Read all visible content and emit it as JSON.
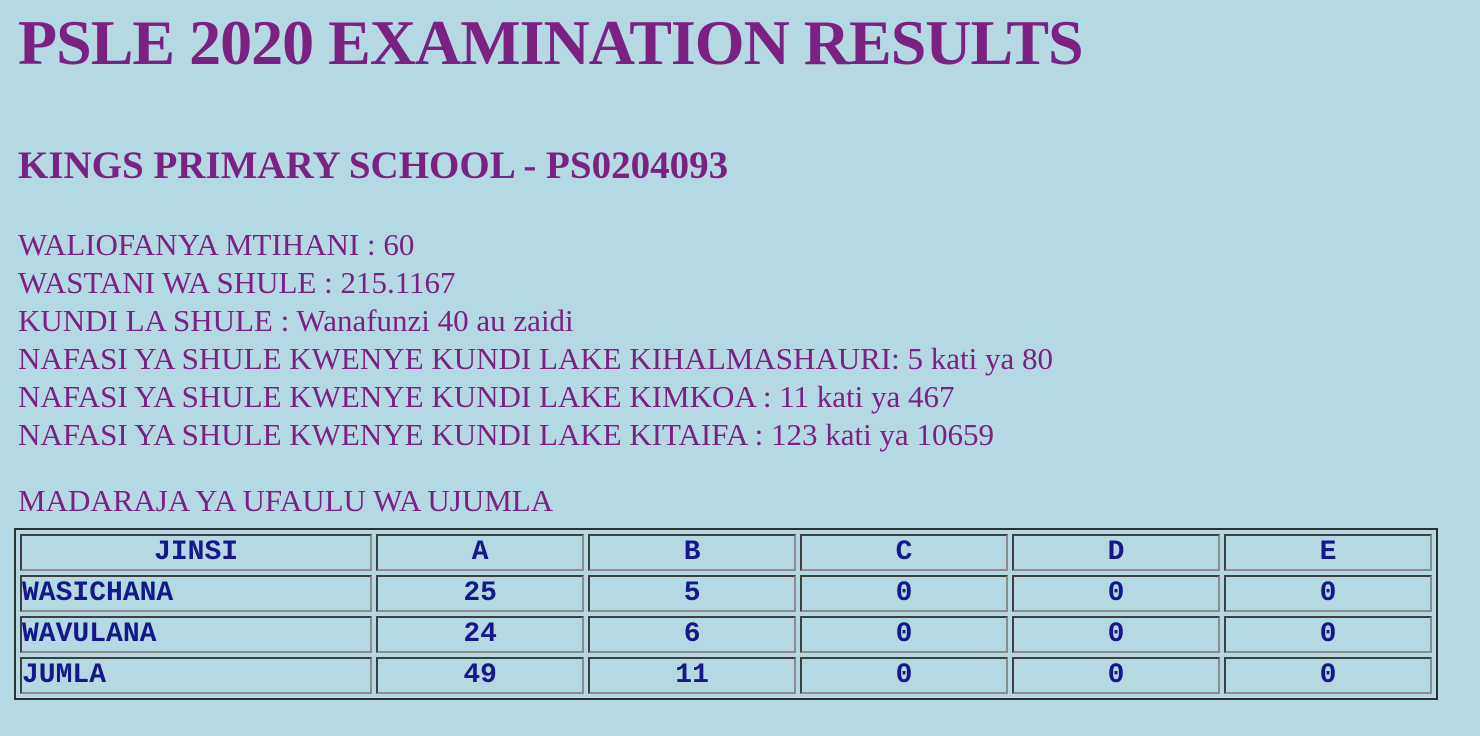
{
  "colors": {
    "page_background": "#B4D9E2",
    "heading_purple": "#7B2182",
    "table_navy": "#17178C",
    "table_outer_border": "#2F2F2F",
    "cell_border_dark": "#3F3F3F",
    "cell_border_light": "#8C8C8C"
  },
  "header": {
    "title": "PSLE 2020 EXAMINATION RESULTS"
  },
  "school": {
    "heading": "KINGS PRIMARY SCHOOL - PS0204093"
  },
  "summary": {
    "lines": [
      "WALIOFANYA MTIHANI : 60",
      "WASTANI WA SHULE : 215.1167",
      "KUNDI LA SHULE : Wanafunzi 40 au zaidi",
      "NAFASI YA SHULE KWENYE KUNDI LAKE KIHALMASHAURI: 5 kati ya 80",
      "NAFASI YA SHULE KWENYE KUNDI LAKE KIMKOA : 11 kati ya 467",
      "NAFASI YA SHULE KWENYE KUNDI LAKE KITAIFA : 123 kati ya 10659"
    ]
  },
  "grades": {
    "heading": "MADARAJA YA UFAULU WA UJUMLA",
    "columns": [
      "JINSI",
      "A",
      "B",
      "C",
      "D",
      "E"
    ],
    "rows": [
      {
        "label": "WASICHANA",
        "values": [
          "25",
          "5",
          "0",
          "0",
          "0"
        ]
      },
      {
        "label": "WAVULANA",
        "values": [
          "24",
          "6",
          "0",
          "0",
          "0"
        ]
      },
      {
        "label": "JUMLA",
        "values": [
          "49",
          "11",
          "0",
          "0",
          "0"
        ]
      }
    ]
  }
}
